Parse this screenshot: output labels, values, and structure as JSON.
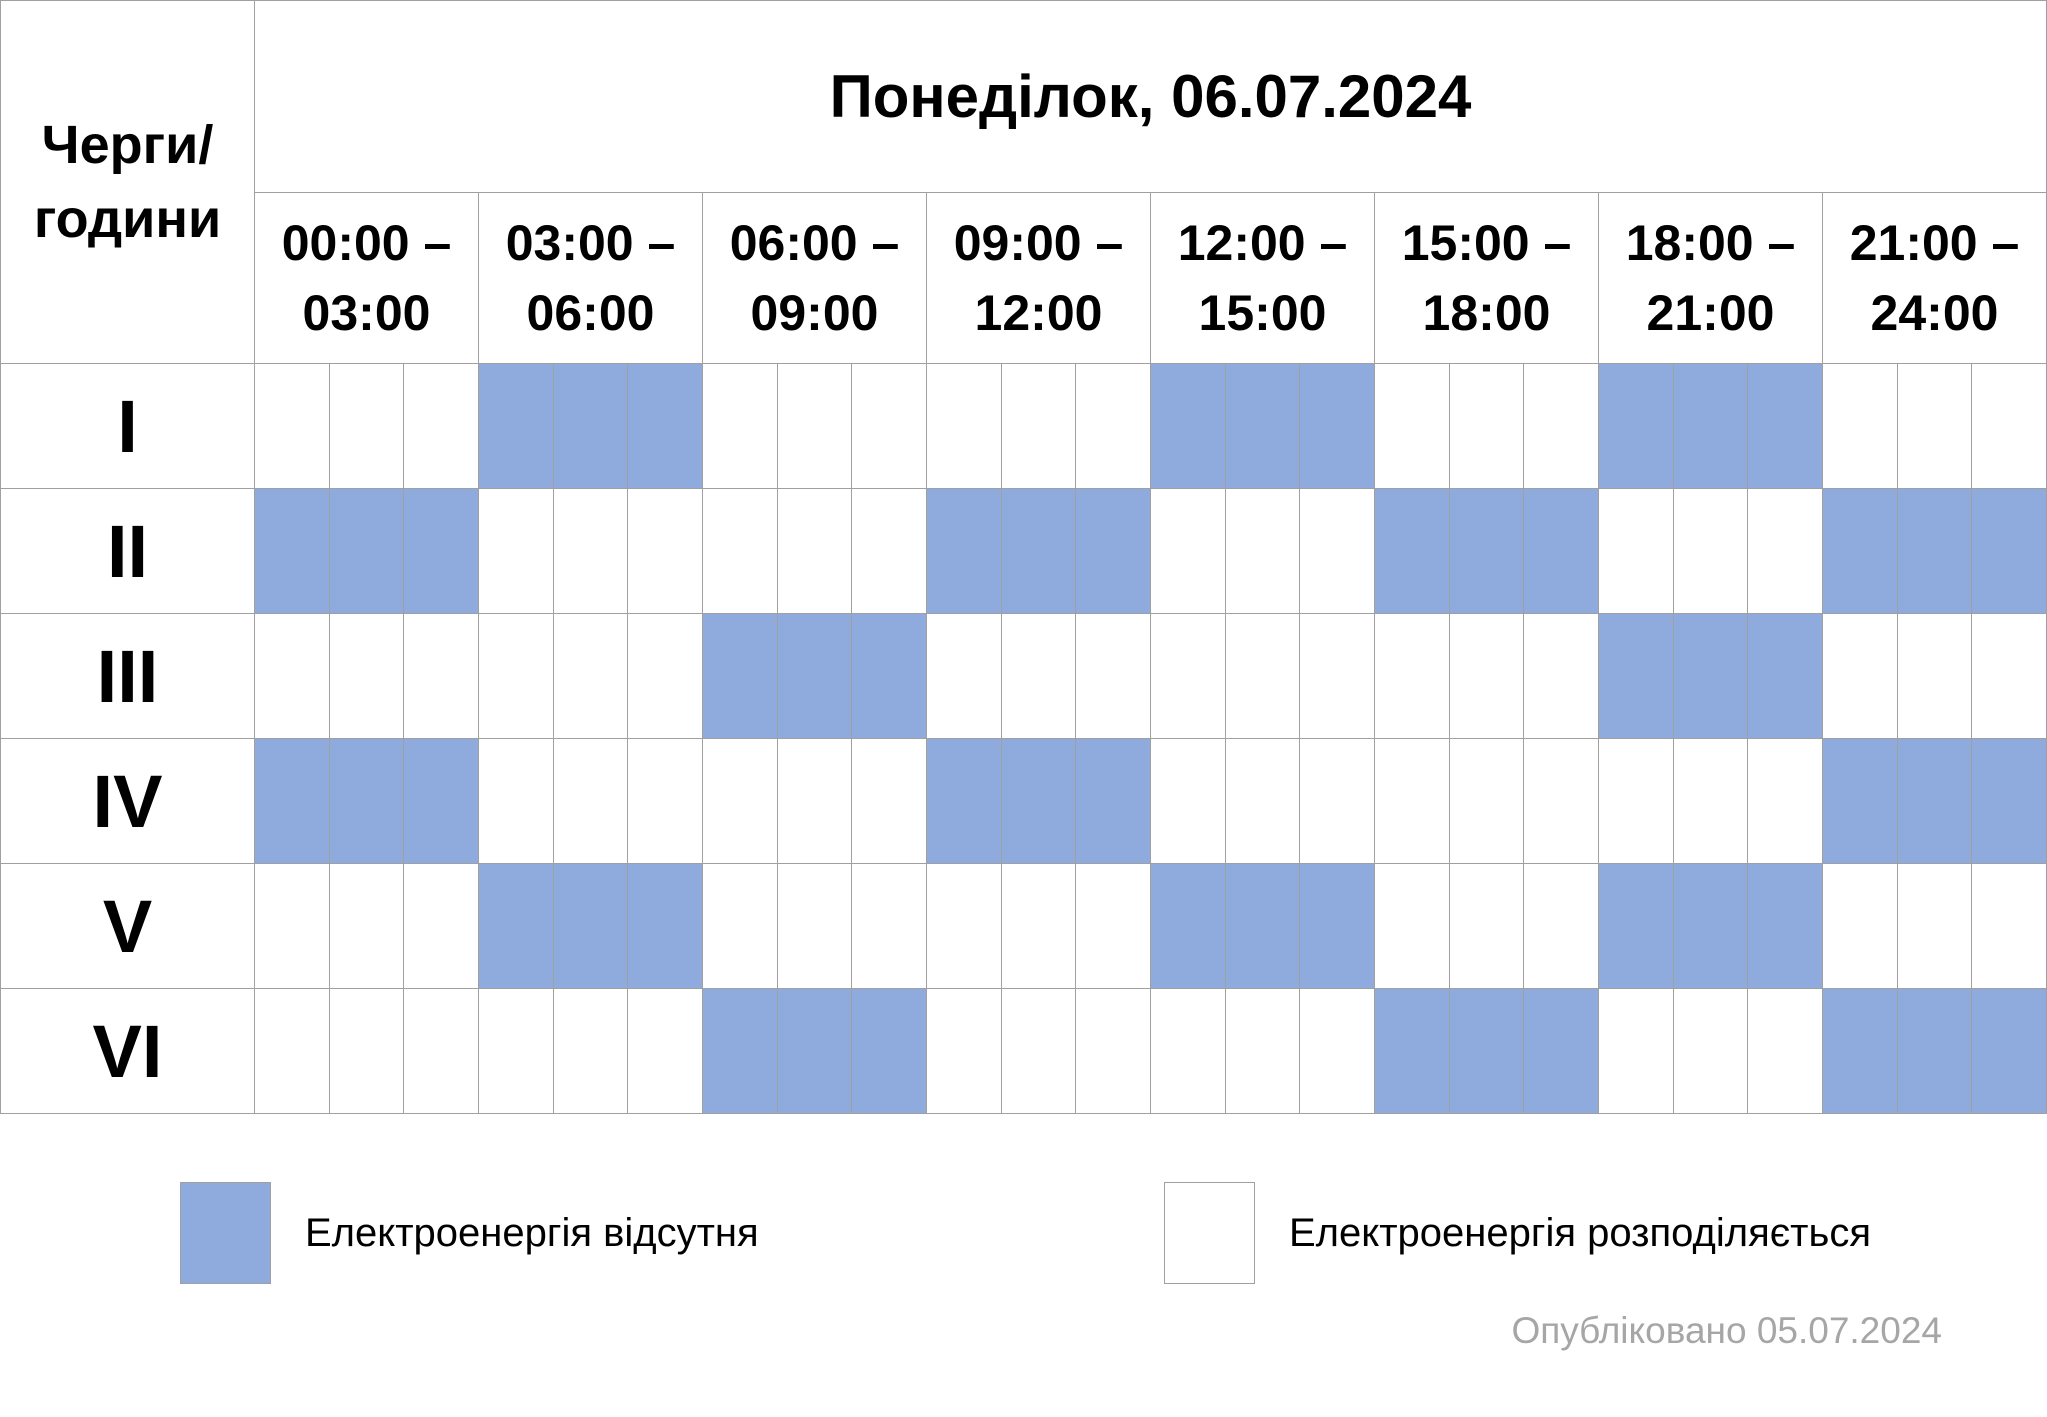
{
  "header": {
    "corner_label": "Черги/ години",
    "title": "Понеділок, 06.07.2024"
  },
  "time_slots": [
    "00:00 – 03:00",
    "03:00 – 06:00",
    "06:00 – 09:00",
    "09:00 – 12:00",
    "12:00 – 15:00",
    "15:00 – 18:00",
    "18:00 – 21:00",
    "21:00 – 24:00"
  ],
  "queues": [
    {
      "label": "I",
      "outage_slots": [
        1,
        4,
        6
      ]
    },
    {
      "label": "II",
      "outage_slots": [
        0,
        3,
        5,
        7
      ]
    },
    {
      "label": "III",
      "outage_slots": [
        2,
        6
      ]
    },
    {
      "label": "IV",
      "outage_slots": [
        0,
        3,
        7
      ]
    },
    {
      "label": "V",
      "outage_slots": [
        1,
        4,
        6
      ]
    },
    {
      "label": "VI",
      "outage_slots": [
        2,
        5,
        7
      ]
    }
  ],
  "legend": {
    "off_label": "Електроенергія відсутня",
    "on_label": "Електроенергія розподіляється",
    "off_color": "#8FAADC",
    "on_color": "#FFFFFF"
  },
  "published": "Опубліковано 05.07.2024"
}
